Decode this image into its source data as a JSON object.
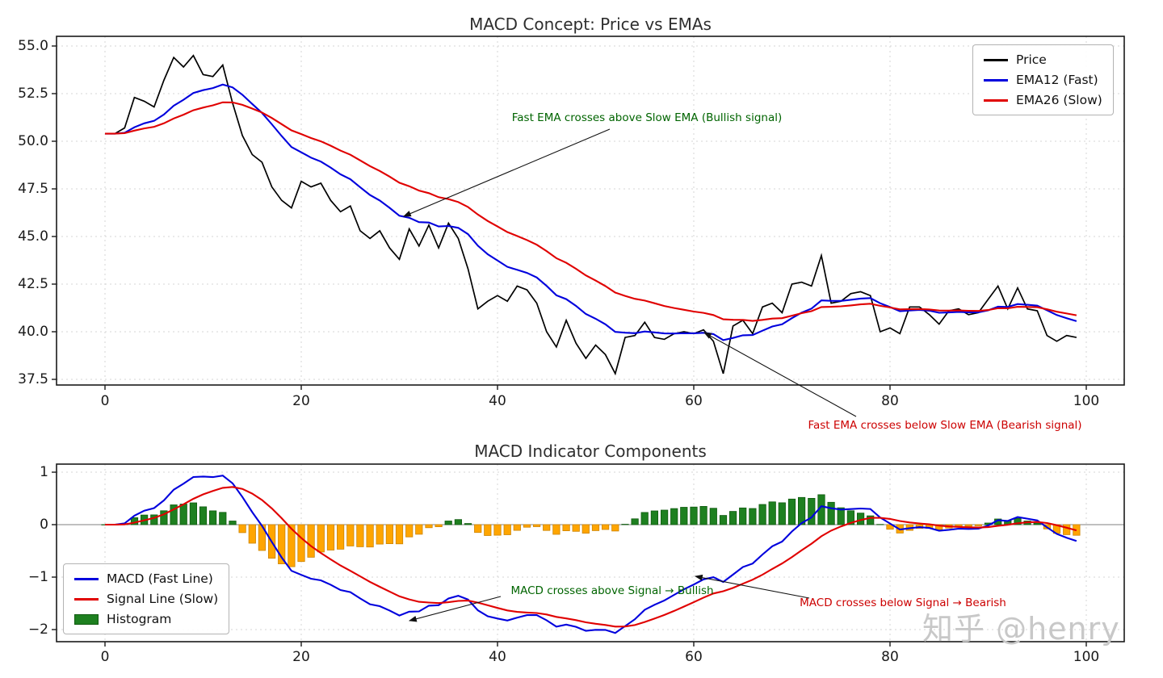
{
  "figure": {
    "background": "#ffffff",
    "watermark": {
      "text": "知乎 @henry",
      "color": "#c8c8c8"
    }
  },
  "chart_data": [
    {
      "type": "line",
      "title": "MACD Concept: Price vs EMAs",
      "xlabel": "",
      "ylabel": "",
      "x": {
        "start": 0,
        "step": 1,
        "count": 100
      },
      "xlim": [
        -5,
        104
      ],
      "ylim": [
        37.2,
        55.5
      ],
      "x_ticks": [
        0,
        20,
        40,
        60,
        80,
        100
      ],
      "x_tick_labels": [
        "0",
        "20",
        "40",
        "60",
        "80",
        "100"
      ],
      "y_ticks": [
        55.0,
        52.5,
        50.0,
        47.5,
        45.0,
        42.5,
        40.0,
        37.5
      ],
      "y_tick_labels": [
        "55.0",
        "52.5",
        "50.0",
        "47.5",
        "45.0",
        "42.5",
        "40.0",
        "37.5"
      ],
      "grid": "dashed",
      "legend_position": "upper right",
      "series": [
        {
          "name": "Price",
          "color": "#000000",
          "values": [
            50.4,
            50.4,
            50.7,
            52.3,
            52.1,
            51.8,
            53.2,
            54.4,
            53.9,
            54.5,
            53.5,
            53.4,
            54.0,
            52.0,
            50.3,
            49.3,
            48.9,
            47.6,
            46.9,
            46.5,
            47.9,
            47.6,
            47.8,
            46.9,
            46.3,
            46.6,
            45.3,
            44.9,
            45.3,
            44.4,
            43.8,
            45.4,
            44.5,
            45.6,
            44.4,
            45.7,
            44.9,
            43.3,
            41.2,
            41.6,
            41.9,
            41.6,
            42.4,
            42.2,
            41.5,
            40.0,
            39.2,
            40.6,
            39.4,
            38.6,
            39.3,
            38.8,
            37.8,
            39.7,
            39.8,
            40.5,
            39.7,
            39.6,
            39.9,
            40.0,
            39.9,
            40.1,
            39.5,
            37.8,
            40.3,
            40.6,
            39.9,
            41.3,
            41.5,
            41.0,
            42.5,
            42.6,
            42.4,
            44.0,
            41.5,
            41.6,
            42.0,
            42.1,
            41.9,
            40.0,
            40.2,
            39.9,
            41.3,
            41.3,
            40.9,
            40.4,
            41.1,
            41.2,
            40.9,
            41.0,
            41.7,
            42.4,
            41.2,
            42.3,
            41.2,
            41.1,
            39.8,
            39.5,
            39.8,
            39.7
          ]
        },
        {
          "name": "EMA12 (Fast)",
          "color": "#0000dd",
          "derived_from": "EMA(span=12) of Price"
        },
        {
          "name": "EMA26 (Slow)",
          "color": "#e00000",
          "derived_from": "EMA(span=26) of Price"
        }
      ],
      "annotations": [
        {
          "text": "Fast EMA crosses above Slow EMA (Bullish signal)",
          "color": "#006400",
          "points_to": {
            "x": 30,
            "y": 45.9
          }
        },
        {
          "text": "Fast EMA crosses below Slow EMA (Bearish signal)",
          "color": "#cc0000",
          "points_to": {
            "x": 61,
            "y": 40.0
          }
        }
      ]
    },
    {
      "type": "line+bar",
      "title": "MACD Indicator Components",
      "xlabel": "",
      "ylabel": "",
      "x": {
        "start": 0,
        "step": 1,
        "count": 100
      },
      "xlim": [
        -5,
        104
      ],
      "ylim": [
        -2.25,
        1.15
      ],
      "x_ticks": [
        0,
        20,
        40,
        60,
        80,
        100
      ],
      "x_tick_labels": [
        "0",
        "20",
        "40",
        "60",
        "80",
        "100"
      ],
      "y_ticks": [
        1,
        0,
        -1,
        -2
      ],
      "y_tick_labels": [
        "1",
        "0",
        "−1",
        "−2"
      ],
      "grid": "dashed",
      "zero_line": true,
      "legend_position": "lower left",
      "series": [
        {
          "name": "MACD (Fast Line)",
          "type": "line",
          "color": "#0000dd",
          "derived_from": "EMA12(Price) − EMA26(Price)"
        },
        {
          "name": "Signal Line (Slow)",
          "type": "line",
          "color": "#e00000",
          "derived_from": "EMA(span=9) of MACD"
        },
        {
          "name": "Histogram",
          "type": "bar",
          "color_positive": "#1e8020",
          "color_negative": "#ffa500",
          "edge_positive": "#0f5a0f",
          "edge_negative": "#cc8400",
          "derived_from": "MACD − Signal"
        }
      ],
      "annotations": [
        {
          "text": "MACD crosses above Signal → Bullish",
          "color": "#006400",
          "points_to": {
            "x": 31,
            "y": -1.8
          }
        },
        {
          "text": "MACD crosses below Signal → Bearish",
          "color": "#cc0000",
          "points_to": {
            "x": 60,
            "y": -1.0
          }
        }
      ]
    }
  ]
}
